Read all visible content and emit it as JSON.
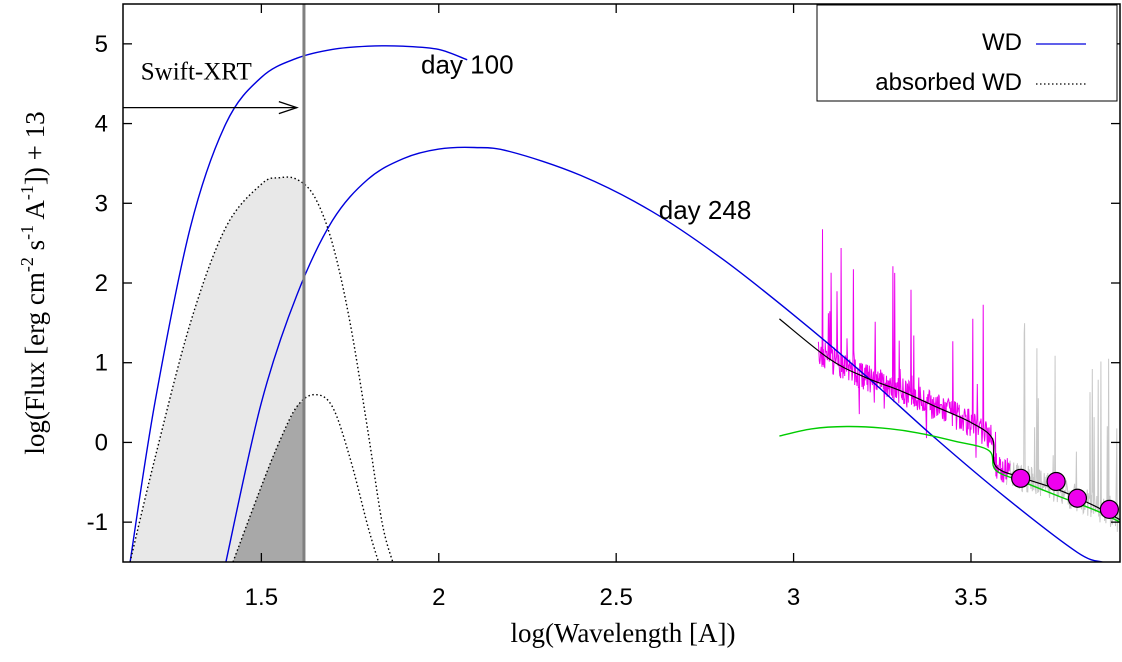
{
  "chart_data": {
    "type": "line",
    "xlabel": "log(Wavelength [A])",
    "ylabel_parts": [
      "log(Flux [erg cm",
      "-2",
      " s",
      "-1",
      " A",
      "-1",
      "]) + 13"
    ],
    "xlim": [
      1.11,
      3.92
    ],
    "ylim": [
      -1.5,
      5.5
    ],
    "x_ticks": [
      1.5,
      2,
      2.5,
      3,
      3.5
    ],
    "x_tick_labels": [
      "1.5",
      "2",
      "2.5",
      "3",
      "3.5"
    ],
    "y_ticks": [
      -1,
      0,
      1,
      2,
      3,
      4,
      5
    ],
    "y_tick_labels": [
      "-1",
      "0",
      "1",
      "2",
      "3",
      "4",
      "5"
    ],
    "legend": {
      "position": "top-right",
      "entries": [
        {
          "label": "WD",
          "color": "#0000dd",
          "style": "solid"
        },
        {
          "label": "absorbed WD",
          "color": "#000000",
          "style": "dotted"
        }
      ]
    },
    "annotations": [
      {
        "text": "day 100",
        "x": 1.95,
        "y": 4.63
      },
      {
        "text": "day 248",
        "x": 2.62,
        "y": 2.8
      },
      {
        "text": "Swift-XRT",
        "x": 1.16,
        "y": 4.55
      }
    ],
    "swift_xrt_limit_x": 1.62,
    "swift_arrow": {
      "from": [
        1.11,
        4.2
      ],
      "to": [
        1.6,
        4.2
      ]
    },
    "series": [
      {
        "name": "WD",
        "color": "#0000dd",
        "style": "solid",
        "x": [
          1.13,
          1.2,
          1.3,
          1.4,
          1.5,
          1.6,
          1.7,
          1.8,
          1.9,
          2.0,
          2.08
        ],
        "y": [
          -1.5,
          0.5,
          2.7,
          4.0,
          4.58,
          4.82,
          4.93,
          4.97,
          4.97,
          4.93,
          4.8
        ]
      },
      {
        "name": "WD",
        "color": "#0000dd",
        "style": "solid",
        "x": [
          1.4,
          1.5,
          1.6,
          1.7,
          1.8,
          1.9,
          2.0,
          2.1,
          2.2,
          2.4,
          2.6,
          2.8,
          3.0,
          3.2,
          3.4,
          3.6,
          3.8,
          3.87
        ],
        "y": [
          -1.5,
          0.5,
          1.85,
          2.78,
          3.3,
          3.56,
          3.68,
          3.7,
          3.65,
          3.35,
          2.9,
          2.3,
          1.6,
          0.85,
          0.05,
          -0.7,
          -1.38,
          -1.5
        ]
      },
      {
        "name": "absorbed WD",
        "color": "#000000",
        "style": "dotted",
        "x": [
          1.13,
          1.2,
          1.3,
          1.4,
          1.5,
          1.55,
          1.6,
          1.65,
          1.7,
          1.75,
          1.8,
          1.84,
          1.87
        ],
        "y": [
          -1.5,
          -0.2,
          1.5,
          2.7,
          3.24,
          3.32,
          3.3,
          3.08,
          2.5,
          1.5,
          0.15,
          -1.0,
          -1.5
        ]
      },
      {
        "name": "absorbed WD",
        "color": "#000000",
        "style": "dotted",
        "x": [
          1.42,
          1.5,
          1.55,
          1.6,
          1.65,
          1.7,
          1.75,
          1.8,
          1.83
        ],
        "y": [
          -1.5,
          -0.55,
          0.0,
          0.45,
          0.6,
          0.45,
          -0.2,
          -1.05,
          -1.5
        ]
      },
      {
        "name": "",
        "color": "#00cc00",
        "style": "solid",
        "x": [
          2.96,
          3.05,
          3.15,
          3.25,
          3.35,
          3.45,
          3.55,
          3.57,
          3.65,
          3.75,
          3.85,
          3.92
        ],
        "y": [
          0.08,
          0.17,
          0.2,
          0.18,
          0.12,
          0.02,
          -0.1,
          -0.35,
          -0.5,
          -0.68,
          -0.85,
          -1.0
        ]
      },
      {
        "name": "",
        "color": "#000000",
        "style": "solid",
        "x": [
          2.96,
          3.1,
          3.2,
          3.3,
          3.4,
          3.5,
          3.56,
          3.57,
          3.65,
          3.75,
          3.85,
          3.92
        ],
        "y": [
          1.55,
          1.05,
          0.82,
          0.65,
          0.45,
          0.25,
          0.05,
          -0.3,
          -0.45,
          -0.6,
          -0.8,
          -0.97
        ]
      }
    ],
    "photometry": {
      "color": "#ee00ee",
      "x": [
        3.64,
        3.74,
        3.8,
        3.89
      ],
      "y": [
        -0.45,
        -0.49,
        -0.7,
        -0.84
      ]
    }
  }
}
